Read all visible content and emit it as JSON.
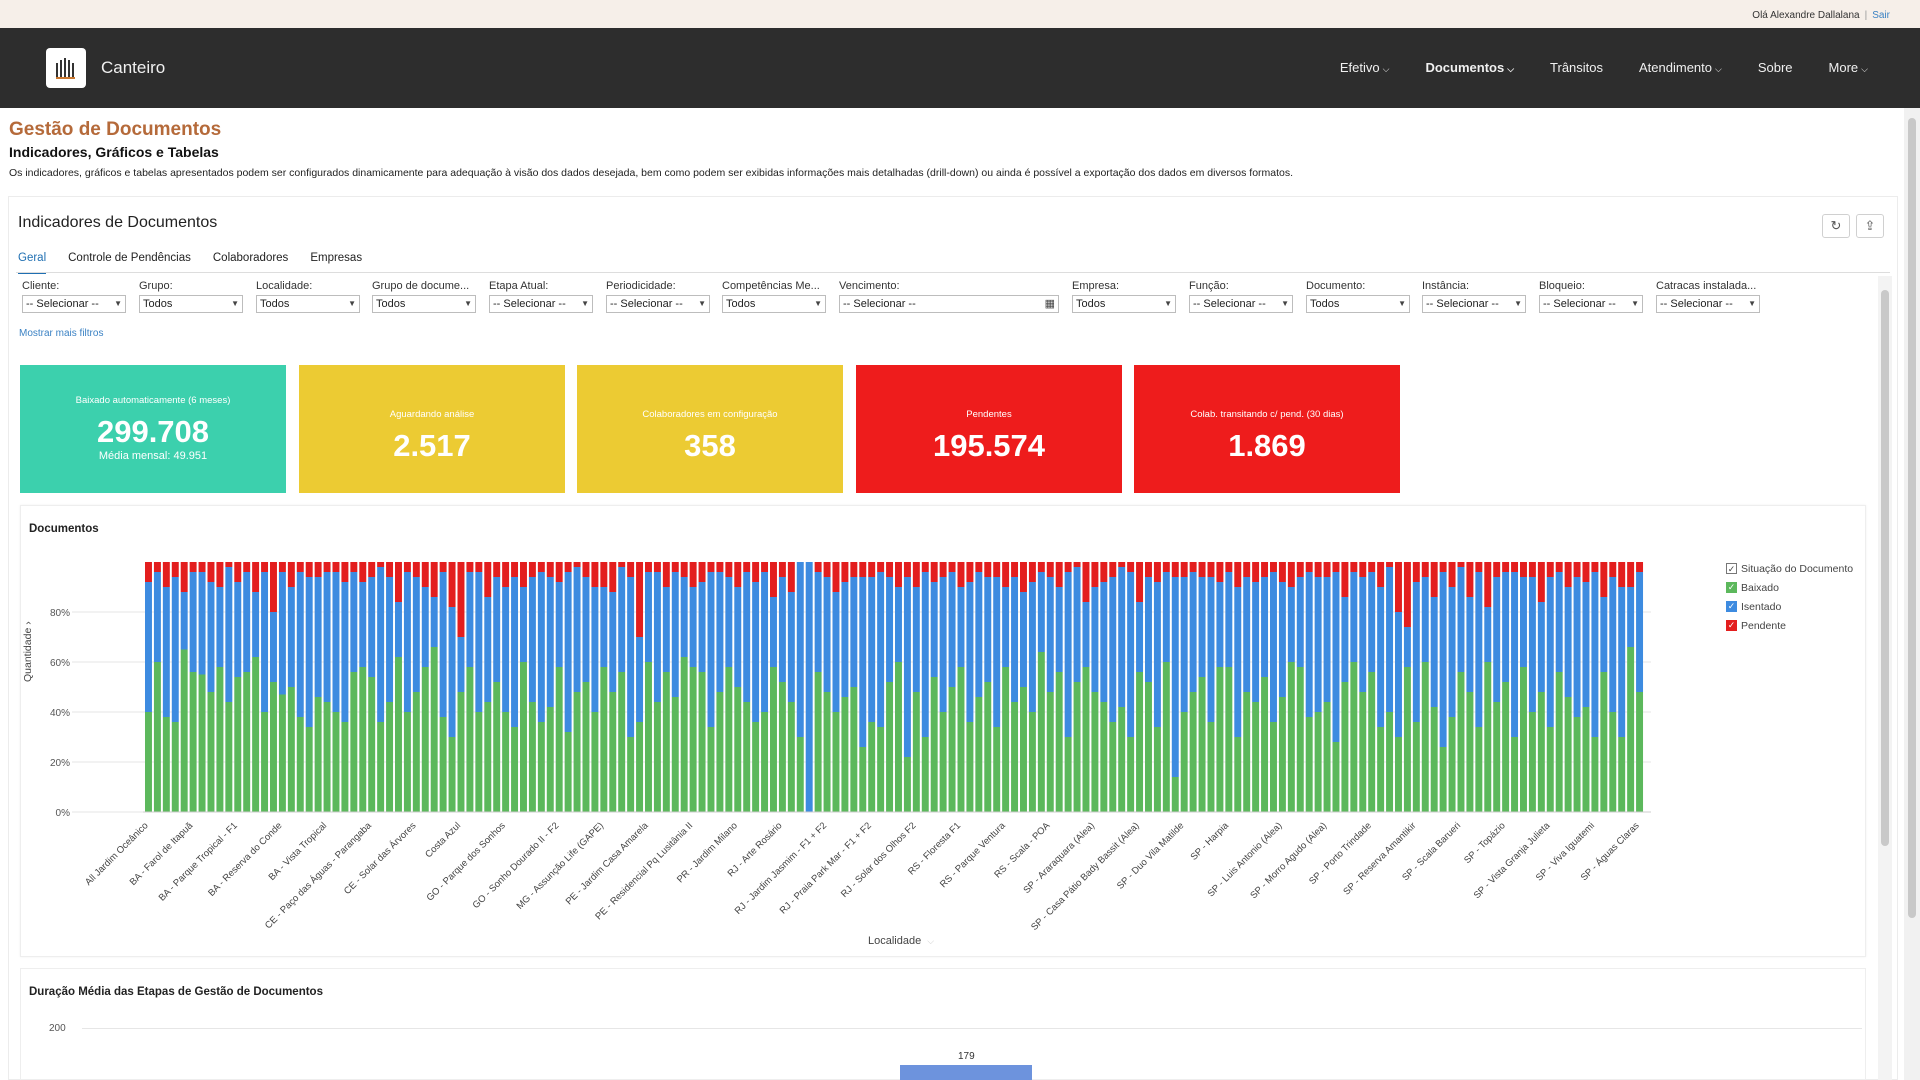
{
  "topbar": {
    "greeting": "Olá Alexandre Dallalana",
    "separator": "|",
    "logout": "Sair"
  },
  "nav": {
    "brand": "Canteiro",
    "items": [
      {
        "label": "Efetivo",
        "dropdown": true
      },
      {
        "label": "Documentos",
        "dropdown": true,
        "active": true
      },
      {
        "label": "Trânsitos",
        "dropdown": false
      },
      {
        "label": "Atendimento",
        "dropdown": true
      },
      {
        "label": "Sobre",
        "dropdown": false
      },
      {
        "label": "More",
        "dropdown": true
      }
    ]
  },
  "page": {
    "title": "Gestão de Documentos",
    "subtitle": "Indicadores, Gráficos e Tabelas",
    "description": "Os indicadores, gráficos e tabelas apresentados podem ser configurados dinamicamente para adequação à visão dos dados desejada, bem como podem ser exibidas informações mais detalhadas (drill-down) ou ainda é possível a exportação dos dados em diversos formatos."
  },
  "panel": {
    "title": "Indicadores de Documentos",
    "refresh_icon": "refresh-icon",
    "export_icon": "export-icon"
  },
  "tabs": [
    "Geral",
    "Controle de Pendências",
    "Colaboradores",
    "Empresas"
  ],
  "filters": [
    {
      "label": "Cliente:",
      "value": "-- Selecionar --"
    },
    {
      "label": "Grupo:",
      "value": "Todos"
    },
    {
      "label": "Localidade:",
      "value": "Todos"
    },
    {
      "label": "Grupo de docume...",
      "value": "Todos"
    },
    {
      "label": "Etapa Atual:",
      "value": "-- Selecionar --"
    },
    {
      "label": "Periodicidade:",
      "value": "-- Selecionar --"
    },
    {
      "label": "Competências Me...",
      "value": "Todos"
    },
    {
      "label": "Vencimento:",
      "value": "-- Selecionar --"
    },
    {
      "label": "Empresa:",
      "value": "Todos"
    },
    {
      "label": "Função:",
      "value": "-- Selecionar --"
    },
    {
      "label": "Documento:",
      "value": "Todos"
    },
    {
      "label": "Instância:",
      "value": "-- Selecionar --"
    },
    {
      "label": "Bloqueio:",
      "value": "-- Selecionar --"
    },
    {
      "label": "Catracas instalada...",
      "value": "-- Selecionar --"
    }
  ],
  "more_filters": "Mostrar mais filtros",
  "kpis": [
    {
      "label": "Baixado automaticamente (6 meses)",
      "value": "299.708",
      "sub": "Média mensal: 49.951",
      "color": "#3cd0ad"
    },
    {
      "label": "Aguardando análise",
      "value": "2.517",
      "sub": "",
      "color": "#eccb33"
    },
    {
      "label": "Colaboradores em configuração",
      "value": "358",
      "sub": "",
      "color": "#eccb33"
    },
    {
      "label": "Pendentes",
      "value": "195.574",
      "sub": "",
      "color": "#ee1c1c"
    },
    {
      "label": "Colab. transitando c/ pend. (30 dias)",
      "value": "1.869",
      "sub": "",
      "color": "#ee1c1c"
    }
  ],
  "chart": {
    "title": "Documentos",
    "ylabel": "Quantidade",
    "xlabel": "Localidade",
    "legend_title": "Situação do Documento"
  },
  "chart_data": {
    "type": "bar",
    "stacked": "percent",
    "yticks": [
      "0%",
      "20%",
      "40%",
      "60%",
      "80%"
    ],
    "ylim": [
      0,
      100
    ],
    "series": [
      {
        "name": "Baixado",
        "color": "#5cb85c"
      },
      {
        "name": "Isentado",
        "color": "#3d8be0"
      },
      {
        "name": "Pendente",
        "color": "#e31e1e"
      }
    ],
    "bar_count": 168,
    "x_tick_labels": [
      "All Jardim Oceânico",
      "BA - Farol de Itapuã",
      "BA - Parque Tropical - F1",
      "BA - Reserva do Conde",
      "BA - Vista Tropical",
      "CE - Paço das Águas - Parangaba",
      "CE - Solar das Árvores",
      "Costa Azul",
      "GO - Parque dos Sonhos",
      "GO - Sonho Dourado II - F2",
      "MG - Assunção Life (GAPE)",
      "PE - Jardim Casa Amarela",
      "PE - Residencial Pq Lusitânia II",
      "PR - Jardim Milano",
      "RJ - Arte Rosário",
      "RJ - Jardim Jasmim - F1 + F2",
      "RJ - Praia Park Mar - F1 + F2",
      "RJ - Solar dos Olhos F2",
      "RS - Floresta F1",
      "RS - Parque Ventura",
      "RS - Scala - POA",
      "SP - Araraquara (Alea)",
      "SP - Casa Pátio Bady Bassit (Alea)",
      "SP - Duo Vila Matilde",
      "SP - Harpia",
      "SP - Luis Antonio (Alea)",
      "SP - Morro Agudo (Alea)",
      "SP - Porto Trindade",
      "SP - Reserva Amantikir",
      "SP - Scala Barueri",
      "SP - Topázio",
      "SP - Vista Granja Julieta",
      "SP - Viva Iguatemi",
      "SP - Águas Claras"
    ],
    "baixado_pct": [
      40,
      60,
      38,
      36,
      65,
      56,
      55,
      48,
      58,
      44,
      54,
      56,
      62,
      40,
      52,
      47,
      50,
      38,
      34,
      46,
      44,
      40,
      36,
      56,
      58,
      54,
      36,
      44,
      62,
      40,
      48,
      58,
      66,
      38,
      30,
      48,
      58,
      40,
      44,
      52,
      40,
      34,
      60,
      44,
      36,
      42,
      58,
      32,
      48,
      52,
      40,
      58,
      48,
      56,
      30,
      36,
      60,
      44,
      56,
      46,
      62,
      58,
      56,
      34,
      48,
      58,
      50,
      44,
      36,
      40,
      58,
      52,
      44,
      30,
      0,
      56,
      48,
      40,
      46,
      50,
      26,
      36,
      34,
      52,
      60,
      22,
      48,
      30,
      54,
      40,
      50,
      58,
      36,
      46,
      52,
      34,
      58,
      44,
      50,
      40,
      64,
      48,
      56,
      30,
      52,
      58,
      48,
      44,
      36,
      42,
      30,
      56,
      52,
      34,
      60,
      14,
      40,
      48,
      54,
      36,
      58,
      58,
      30,
      48,
      44,
      54,
      36,
      46,
      60,
      58,
      38,
      40,
      44,
      28,
      52,
      60,
      48,
      56,
      34,
      40,
      30,
      58,
      36,
      60,
      42,
      26,
      38,
      56,
      48,
      34,
      60,
      44,
      52,
      30,
      58,
      40,
      48,
      34,
      56,
      46,
      38,
      42,
      30,
      56,
      40,
      30,
      66,
      48
    ],
    "pendente_pct": [
      8,
      4,
      10,
      6,
      12,
      4,
      4,
      8,
      10,
      2,
      8,
      4,
      12,
      4,
      20,
      4,
      10,
      4,
      6,
      6,
      4,
      4,
      8,
      4,
      8,
      6,
      2,
      6,
      16,
      4,
      6,
      10,
      14,
      4,
      18,
      30,
      4,
      4,
      14,
      6,
      10,
      6,
      10,
      6,
      4,
      6,
      8,
      4,
      2,
      6,
      10,
      10,
      12,
      2,
      6,
      30,
      4,
      4,
      10,
      4,
      6,
      10,
      8,
      4,
      4,
      6,
      10,
      4,
      8,
      4,
      14,
      6,
      12,
      0,
      0,
      4,
      6,
      12,
      8,
      6,
      6,
      6,
      4,
      6,
      10,
      6,
      10,
      4,
      8,
      6,
      4,
      10,
      8,
      4,
      6,
      6,
      10,
      6,
      12,
      8,
      4,
      6,
      10,
      4,
      2,
      16,
      10,
      8,
      6,
      2,
      4,
      16,
      6,
      8,
      4,
      6,
      6,
      4,
      6,
      6,
      8,
      4,
      10,
      6,
      8,
      6,
      4,
      8,
      10,
      6,
      4,
      6,
      6,
      4,
      14,
      4,
      6,
      4,
      10,
      2,
      20,
      26,
      8,
      6,
      14,
      4,
      10,
      2,
      14,
      4,
      18,
      6,
      4,
      4,
      6,
      6,
      16,
      6,
      4,
      10,
      6,
      8,
      4,
      14,
      6,
      10,
      10,
      4
    ]
  },
  "chart2": {
    "title": "Duração Média das Etapas de Gestão de Documentos",
    "ytick": "200",
    "bar_value": "179"
  }
}
